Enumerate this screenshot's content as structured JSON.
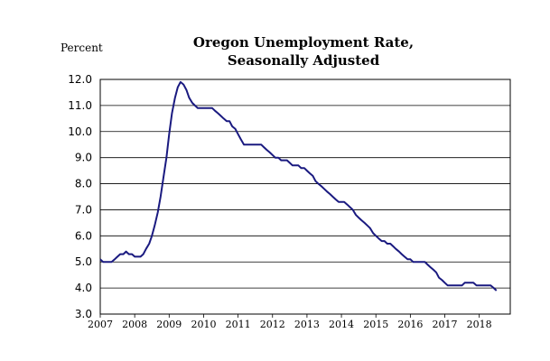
{
  "chart_data": {
    "type": "line",
    "title_line1": "Oregon Unemployment Rate,",
    "title_line2": "Seasonally Adjusted",
    "ylabel": "Percent",
    "xlabel": "",
    "ylim": [
      3.0,
      12.0
    ],
    "y_ticks": [
      "12.0",
      "11.0",
      "10.0",
      "9.0",
      "8.0",
      "7.0",
      "6.0",
      "5.0",
      "4.0",
      "3.0"
    ],
    "xlim": [
      2007.0,
      2018.9
    ],
    "x_ticks": [
      "2007",
      "2008",
      "2009",
      "2010",
      "2011",
      "2012",
      "2013",
      "2014",
      "2015",
      "2016",
      "2017",
      "2018"
    ],
    "grid": true,
    "legend": "none",
    "series": [
      {
        "color": "#1a1a80",
        "points": [
          [
            2007.0,
            5.1
          ],
          [
            2007.08,
            5.0
          ],
          [
            2007.17,
            5.0
          ],
          [
            2007.25,
            5.0
          ],
          [
            2007.33,
            5.0
          ],
          [
            2007.42,
            5.1
          ],
          [
            2007.5,
            5.2
          ],
          [
            2007.58,
            5.3
          ],
          [
            2007.67,
            5.3
          ],
          [
            2007.75,
            5.4
          ],
          [
            2007.83,
            5.3
          ],
          [
            2007.92,
            5.3
          ],
          [
            2008.0,
            5.2
          ],
          [
            2008.08,
            5.2
          ],
          [
            2008.17,
            5.2
          ],
          [
            2008.25,
            5.3
          ],
          [
            2008.33,
            5.5
          ],
          [
            2008.42,
            5.7
          ],
          [
            2008.5,
            6.0
          ],
          [
            2008.58,
            6.4
          ],
          [
            2008.67,
            6.9
          ],
          [
            2008.75,
            7.5
          ],
          [
            2008.83,
            8.2
          ],
          [
            2008.92,
            9.0
          ],
          [
            2009.0,
            9.9
          ],
          [
            2009.08,
            10.7
          ],
          [
            2009.17,
            11.3
          ],
          [
            2009.25,
            11.7
          ],
          [
            2009.33,
            11.9
          ],
          [
            2009.42,
            11.8
          ],
          [
            2009.5,
            11.6
          ],
          [
            2009.58,
            11.3
          ],
          [
            2009.67,
            11.1
          ],
          [
            2009.75,
            11.0
          ],
          [
            2009.83,
            10.9
          ],
          [
            2009.92,
            10.9
          ],
          [
            2010.0,
            10.9
          ],
          [
            2010.08,
            10.9
          ],
          [
            2010.17,
            10.9
          ],
          [
            2010.25,
            10.9
          ],
          [
            2010.33,
            10.8
          ],
          [
            2010.42,
            10.7
          ],
          [
            2010.5,
            10.6
          ],
          [
            2010.58,
            10.5
          ],
          [
            2010.67,
            10.4
          ],
          [
            2010.75,
            10.4
          ],
          [
            2010.83,
            10.2
          ],
          [
            2010.92,
            10.1
          ],
          [
            2011.0,
            9.9
          ],
          [
            2011.08,
            9.7
          ],
          [
            2011.17,
            9.5
          ],
          [
            2011.25,
            9.5
          ],
          [
            2011.33,
            9.5
          ],
          [
            2011.42,
            9.5
          ],
          [
            2011.5,
            9.5
          ],
          [
            2011.58,
            9.5
          ],
          [
            2011.67,
            9.5
          ],
          [
            2011.75,
            9.4
          ],
          [
            2011.83,
            9.3
          ],
          [
            2011.92,
            9.2
          ],
          [
            2012.0,
            9.1
          ],
          [
            2012.08,
            9.0
          ],
          [
            2012.17,
            9.0
          ],
          [
            2012.25,
            8.9
          ],
          [
            2012.33,
            8.9
          ],
          [
            2012.42,
            8.9
          ],
          [
            2012.5,
            8.8
          ],
          [
            2012.58,
            8.7
          ],
          [
            2012.67,
            8.7
          ],
          [
            2012.75,
            8.7
          ],
          [
            2012.83,
            8.6
          ],
          [
            2012.92,
            8.6
          ],
          [
            2013.0,
            8.5
          ],
          [
            2013.08,
            8.4
          ],
          [
            2013.17,
            8.3
          ],
          [
            2013.25,
            8.1
          ],
          [
            2013.33,
            8.0
          ],
          [
            2013.42,
            7.9
          ],
          [
            2013.5,
            7.8
          ],
          [
            2013.58,
            7.7
          ],
          [
            2013.67,
            7.6
          ],
          [
            2013.75,
            7.5
          ],
          [
            2013.83,
            7.4
          ],
          [
            2013.92,
            7.3
          ],
          [
            2014.0,
            7.3
          ],
          [
            2014.08,
            7.3
          ],
          [
            2014.17,
            7.2
          ],
          [
            2014.25,
            7.1
          ],
          [
            2014.33,
            7.0
          ],
          [
            2014.42,
            6.8
          ],
          [
            2014.5,
            6.7
          ],
          [
            2014.58,
            6.6
          ],
          [
            2014.67,
            6.5
          ],
          [
            2014.75,
            6.4
          ],
          [
            2014.83,
            6.3
          ],
          [
            2014.92,
            6.1
          ],
          [
            2015.0,
            6.0
          ],
          [
            2015.08,
            5.9
          ],
          [
            2015.17,
            5.8
          ],
          [
            2015.25,
            5.8
          ],
          [
            2015.33,
            5.7
          ],
          [
            2015.42,
            5.7
          ],
          [
            2015.5,
            5.6
          ],
          [
            2015.58,
            5.5
          ],
          [
            2015.67,
            5.4
          ],
          [
            2015.75,
            5.3
          ],
          [
            2015.83,
            5.2
          ],
          [
            2015.92,
            5.1
          ],
          [
            2016.0,
            5.1
          ],
          [
            2016.08,
            5.0
          ],
          [
            2016.17,
            5.0
          ],
          [
            2016.25,
            5.0
          ],
          [
            2016.33,
            5.0
          ],
          [
            2016.42,
            5.0
          ],
          [
            2016.5,
            4.9
          ],
          [
            2016.58,
            4.8
          ],
          [
            2016.67,
            4.7
          ],
          [
            2016.75,
            4.6
          ],
          [
            2016.83,
            4.4
          ],
          [
            2016.92,
            4.3
          ],
          [
            2017.0,
            4.2
          ],
          [
            2017.08,
            4.1
          ],
          [
            2017.17,
            4.1
          ],
          [
            2017.25,
            4.1
          ],
          [
            2017.33,
            4.1
          ],
          [
            2017.42,
            4.1
          ],
          [
            2017.5,
            4.1
          ],
          [
            2017.58,
            4.2
          ],
          [
            2017.67,
            4.2
          ],
          [
            2017.75,
            4.2
          ],
          [
            2017.83,
            4.2
          ],
          [
            2017.92,
            4.1
          ],
          [
            2018.0,
            4.1
          ],
          [
            2018.08,
            4.1
          ],
          [
            2018.17,
            4.1
          ],
          [
            2018.25,
            4.1
          ],
          [
            2018.33,
            4.1
          ],
          [
            2018.42,
            4.0
          ],
          [
            2018.5,
            3.9
          ]
        ]
      }
    ]
  }
}
